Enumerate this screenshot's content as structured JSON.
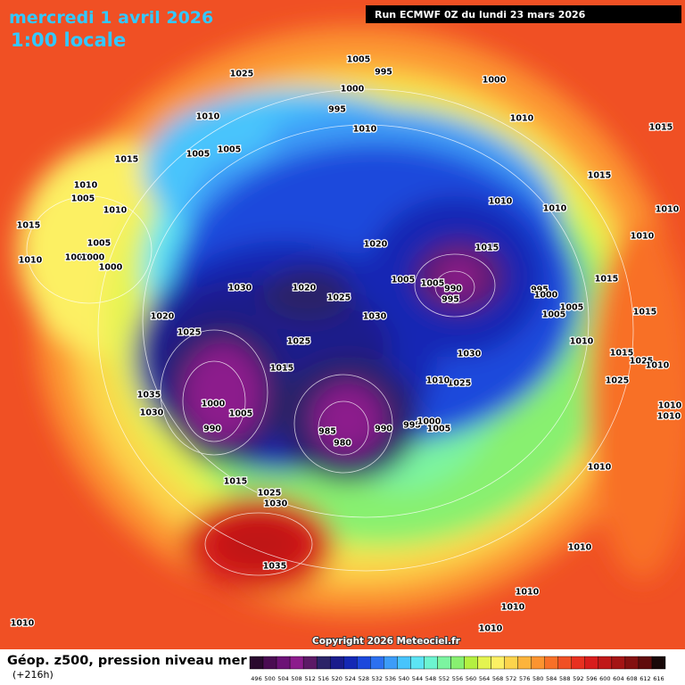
{
  "header": {
    "date": "mercredi 1 avril 2026",
    "time": "1:00 locale",
    "run": "Run ECMWF 0Z du lundi 23 mars 2026"
  },
  "isobar_labels": [
    1025,
    1005,
    995,
    1000,
    995,
    1010,
    1005,
    1005,
    1010,
    1000,
    1010,
    1015,
    1015,
    1010,
    1005,
    1010,
    1015,
    1005,
    1000,
    1000,
    1000,
    1010,
    1015,
    1010,
    1010,
    1010,
    1010,
    1020,
    1015,
    1005,
    1005,
    990,
    995,
    1030,
    1020,
    1025,
    1030,
    995,
    1000,
    1005,
    1005,
    1015,
    1015,
    1020,
    1025,
    1025,
    1015,
    1030,
    1010,
    1015,
    1025,
    1010,
    1025,
    1035,
    1030,
    1000,
    1005,
    990,
    1010,
    985,
    980,
    990,
    995,
    1000,
    1005,
    1025,
    1010,
    1010,
    1010,
    1015,
    1025,
    1030,
    1035,
    1010,
    1010,
    1010,
    1010,
    1010
  ],
  "copyright": "Copyright 2026 Meteociel.fr",
  "legend": {
    "title": "Géop. z500, pression niveau mer",
    "lead_time": "(+216h)",
    "scale": [
      {
        "value": 496,
        "color": "#2a0a2e"
      },
      {
        "value": 500,
        "color": "#4a0c52"
      },
      {
        "value": 504,
        "color": "#6c1276"
      },
      {
        "value": 508,
        "color": "#8c1c8c"
      },
      {
        "value": 512,
        "color": "#5c1a66"
      },
      {
        "value": 516,
        "color": "#2c2468"
      },
      {
        "value": 520,
        "color": "#1a1c8c"
      },
      {
        "value": 524,
        "color": "#1428b4"
      },
      {
        "value": 528,
        "color": "#1c48dc"
      },
      {
        "value": 532,
        "color": "#2c70f0"
      },
      {
        "value": 536,
        "color": "#3c9cf8"
      },
      {
        "value": 540,
        "color": "#48c4fc"
      },
      {
        "value": 544,
        "color": "#5ce4f4"
      },
      {
        "value": 548,
        "color": "#6cf4d0"
      },
      {
        "value": 552,
        "color": "#7cf4a0"
      },
      {
        "value": 556,
        "color": "#88f070"
      },
      {
        "value": 560,
        "color": "#b4f040"
      },
      {
        "value": 564,
        "color": "#e4f450"
      },
      {
        "value": 568,
        "color": "#fcf064"
      },
      {
        "value": 572,
        "color": "#fcd44c"
      },
      {
        "value": 576,
        "color": "#fcb43c"
      },
      {
        "value": 580,
        "color": "#fc9430"
      },
      {
        "value": 584,
        "color": "#f87028"
      },
      {
        "value": 588,
        "color": "#f05024"
      },
      {
        "value": 592,
        "color": "#e83020"
      },
      {
        "value": 596,
        "color": "#d81c1c"
      },
      {
        "value": 600,
        "color": "#c01818"
      },
      {
        "value": 604,
        "color": "#a41414"
      },
      {
        "value": 608,
        "color": "#841010"
      },
      {
        "value": 612,
        "color": "#600c0c"
      },
      {
        "value": 616,
        "color": "#180808"
      }
    ]
  }
}
